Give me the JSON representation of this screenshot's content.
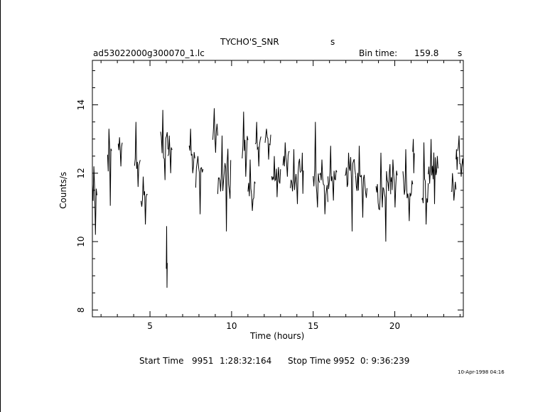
{
  "header": {
    "object_name": "TYCHO'S_SNR",
    "object_unit": "s",
    "filename": "ad53022000g300070_1.lc",
    "bin_time_label": "Bin time:",
    "bin_time_value": "159.8",
    "bin_time_unit": "s"
  },
  "footer": {
    "start_label": "Start Time",
    "start_day": "9951",
    "start_clock": "1:28:32:164",
    "stop_label": "Stop Time",
    "stop_day": "9952",
    "stop_clock": "0: 9:36:239",
    "stamp": "10-Apr-1998 04:16"
  },
  "colors": {
    "line": "#000000",
    "background": "#ffffff"
  },
  "chart_data": {
    "type": "line",
    "title": "TYCHO'S_SNR",
    "xlabel": "Time (hours)",
    "ylabel": "Counts/s",
    "xlim": [
      1.47,
      24.2
    ],
    "ylim": [
      7.8,
      15.3
    ],
    "x_ticks": [
      5,
      10,
      15,
      20
    ],
    "y_ticks": [
      8,
      10,
      12,
      14
    ],
    "grid": false,
    "segments": [
      {
        "x_start": 1.47,
        "x_end": 1.75,
        "min": 10.2,
        "max": 12.2,
        "level": 11.5
      },
      {
        "x_start": 2.4,
        "x_end": 2.65,
        "min": 11.05,
        "max": 13.3,
        "level": 12.4
      },
      {
        "x_start": 3.05,
        "x_end": 3.3,
        "min": 12.2,
        "max": 13.05,
        "level": 12.7
      },
      {
        "x_start": 4.05,
        "x_end": 4.4,
        "min": 11.6,
        "max": 13.5,
        "level": 12.5
      },
      {
        "x_start": 4.45,
        "x_end": 4.85,
        "min": 10.5,
        "max": 11.9,
        "level": 11.2
      },
      {
        "x_start": 5.65,
        "x_end": 6.1,
        "min": 11.8,
        "max": 13.85,
        "level": 12.8
      },
      {
        "x_start": 6.0,
        "x_end": 6.06,
        "min": 8.65,
        "max": 10.45,
        "level": 9.5
      },
      {
        "x_start": 6.1,
        "x_end": 6.35,
        "min": 12.0,
        "max": 13.1,
        "level": 12.6
      },
      {
        "x_start": 7.4,
        "x_end": 7.75,
        "min": 12.0,
        "max": 13.3,
        "level": 12.6
      },
      {
        "x_start": 7.8,
        "x_end": 8.25,
        "min": 10.8,
        "max": 12.5,
        "level": 11.8
      },
      {
        "x_start": 8.85,
        "x_end": 9.15,
        "min": 12.6,
        "max": 13.9,
        "level": 13.1
      },
      {
        "x_start": 9.15,
        "x_end": 9.95,
        "min": 10.3,
        "max": 13.1,
        "level": 11.8
      },
      {
        "x_start": 10.65,
        "x_end": 11.0,
        "min": 11.9,
        "max": 13.8,
        "level": 12.8
      },
      {
        "x_start": 11.0,
        "x_end": 11.45,
        "min": 10.9,
        "max": 12.4,
        "level": 11.7
      },
      {
        "x_start": 11.45,
        "x_end": 11.8,
        "min": 12.2,
        "max": 13.5,
        "level": 12.7
      },
      {
        "x_start": 12.05,
        "x_end": 12.4,
        "min": 12.4,
        "max": 13.3,
        "level": 12.9
      },
      {
        "x_start": 12.45,
        "x_end": 13.0,
        "min": 11.3,
        "max": 12.5,
        "level": 11.8
      },
      {
        "x_start": 13.15,
        "x_end": 13.55,
        "min": 11.9,
        "max": 12.9,
        "level": 12.4
      },
      {
        "x_start": 13.6,
        "x_end": 14.25,
        "min": 11.1,
        "max": 12.7,
        "level": 11.8
      },
      {
        "x_start": 14.3,
        "x_end": 14.4,
        "min": 11.4,
        "max": 12.6,
        "level": 11.9
      },
      {
        "x_start": 15.0,
        "x_end": 15.4,
        "min": 11.0,
        "max": 13.5,
        "level": 12.0
      },
      {
        "x_start": 15.4,
        "x_end": 15.9,
        "min": 10.8,
        "max": 12.4,
        "level": 11.6
      },
      {
        "x_start": 15.9,
        "x_end": 16.45,
        "min": 11.2,
        "max": 12.8,
        "level": 11.8
      },
      {
        "x_start": 16.95,
        "x_end": 17.6,
        "min": 10.3,
        "max": 12.6,
        "level": 11.6
      },
      {
        "x_start": 17.6,
        "x_end": 18.3,
        "min": 10.7,
        "max": 12.8,
        "level": 11.7
      },
      {
        "x_start": 18.85,
        "x_end": 19.75,
        "min": 10.0,
        "max": 12.6,
        "level": 11.6
      },
      {
        "x_start": 19.75,
        "x_end": 20.15,
        "min": 11.0,
        "max": 12.4,
        "level": 11.7
      },
      {
        "x_start": 20.5,
        "x_end": 21.1,
        "min": 10.6,
        "max": 12.7,
        "level": 11.6
      },
      {
        "x_start": 21.1,
        "x_end": 21.2,
        "min": 12.0,
        "max": 13.0,
        "level": 12.5
      },
      {
        "x_start": 21.65,
        "x_end": 22.05,
        "min": 10.5,
        "max": 12.9,
        "level": 11.6
      },
      {
        "x_start": 22.05,
        "x_end": 22.65,
        "min": 11.1,
        "max": 13.0,
        "level": 12.0
      },
      {
        "x_start": 23.45,
        "x_end": 23.75,
        "min": 11.2,
        "max": 12.0,
        "level": 11.6
      },
      {
        "x_start": 23.75,
        "x_end": 23.85,
        "min": 12.1,
        "max": 12.7,
        "level": 12.4
      },
      {
        "x_start": 23.85,
        "x_end": 24.2,
        "min": 11.9,
        "max": 13.1,
        "level": 12.5
      }
    ]
  }
}
